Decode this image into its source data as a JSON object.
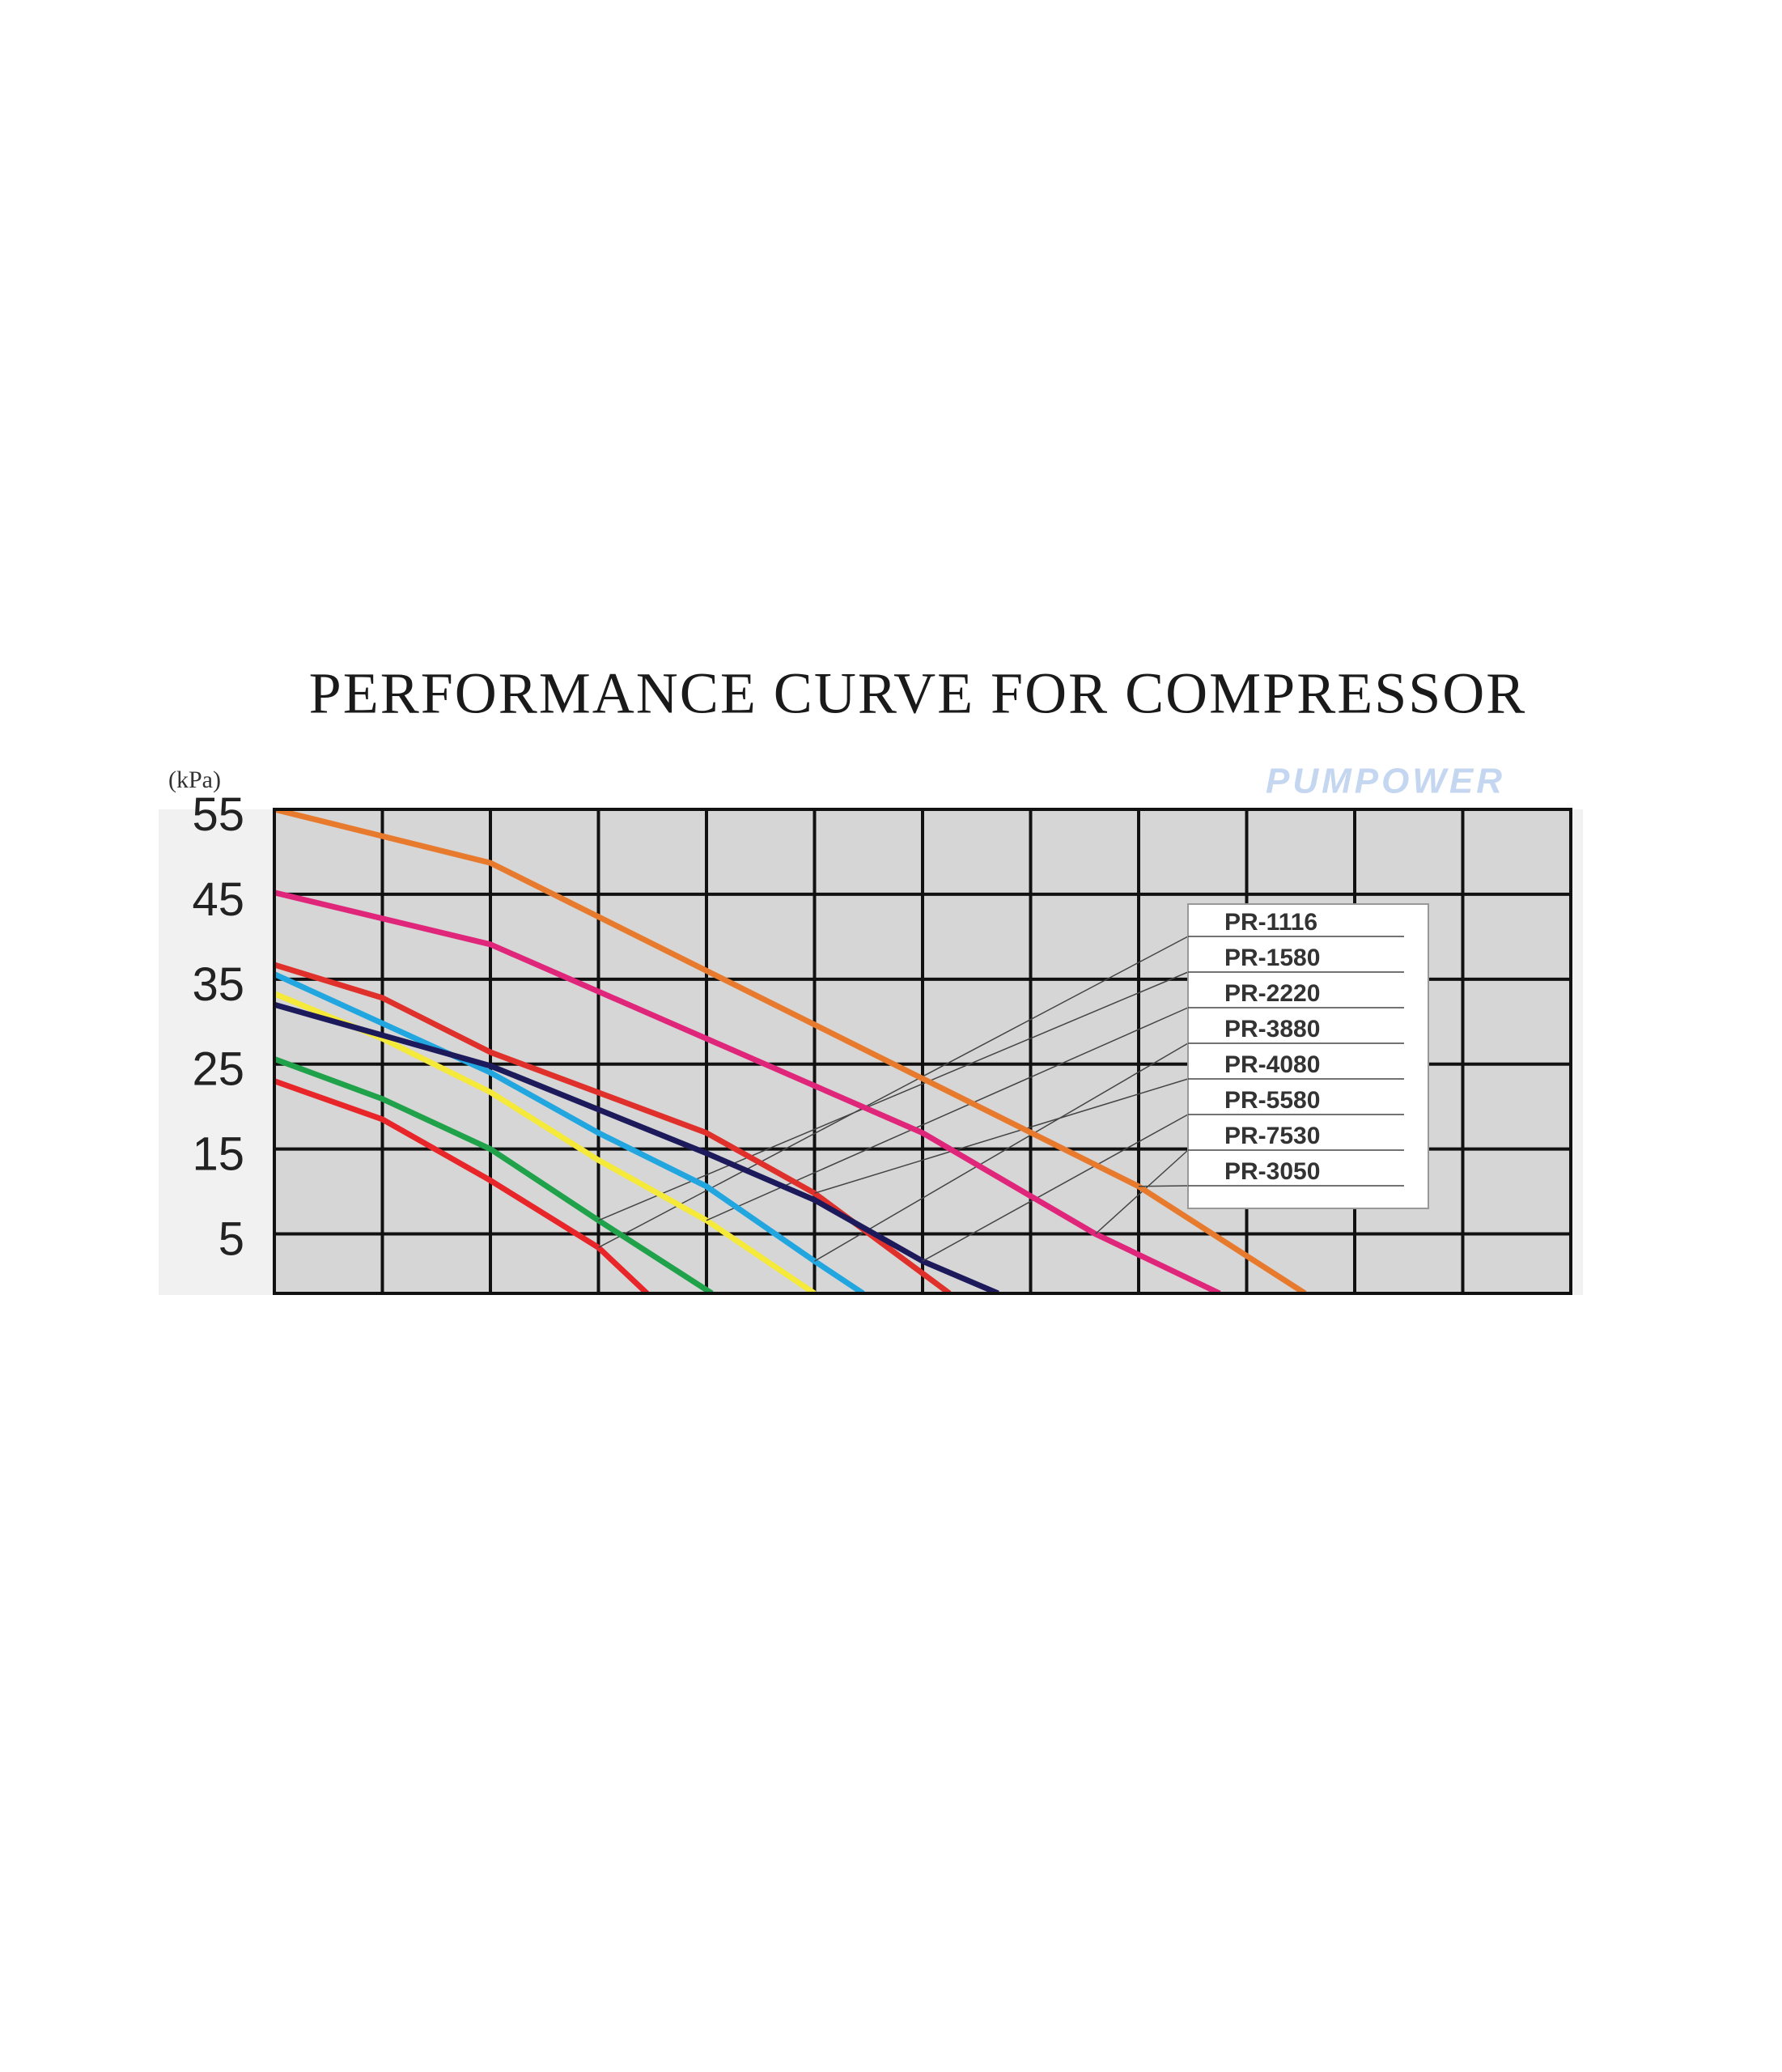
{
  "chart_data": {
    "type": "line",
    "title": "PERFORMANCE CURVE FOR COMPRESSOR",
    "y_label": "(kPa)",
    "watermark": "PUMPOWER",
    "xlim": [
      0,
      12
    ],
    "ylim": [
      -2,
      55
    ],
    "yticks": [
      5,
      15,
      25,
      35,
      45,
      55
    ],
    "grid": true,
    "legend": "upper right",
    "series": [
      {
        "name": "PR-1116",
        "color": "#e8262a",
        "x": [
          0,
          1,
          2,
          3,
          3.45
        ],
        "values": [
          23,
          18.5,
          11.3,
          3.4,
          -2
        ]
      },
      {
        "name": "PR-1580",
        "color": "#1fa24a",
        "x": [
          0,
          1,
          2,
          3,
          4.05
        ],
        "values": [
          25.6,
          20.9,
          15,
          6.6,
          -2
        ]
      },
      {
        "name": "PR-2220",
        "color": "#f5e93a",
        "x": [
          0,
          1,
          2,
          3,
          4,
          5
        ],
        "values": [
          33.3,
          28,
          21.7,
          13.7,
          6.6,
          -2
        ]
      },
      {
        "name": "PR-3880",
        "color": "#22a6e0",
        "x": [
          0,
          2,
          3,
          4,
          5,
          5.45
        ],
        "values": [
          35.6,
          24,
          16.9,
          10.6,
          1.8,
          -2
        ]
      },
      {
        "name": "PR-4080",
        "color": "#e0302c",
        "x": [
          0,
          1,
          2,
          4,
          5,
          6.25
        ],
        "values": [
          36.7,
          32.8,
          26.4,
          16.9,
          9.8,
          -2
        ]
      },
      {
        "name": "PR-5580",
        "color": "#1d1a5c",
        "x": [
          0,
          2,
          4,
          5,
          6,
          6.7
        ],
        "values": [
          32,
          24.8,
          14.5,
          9,
          1.8,
          -2
        ]
      },
      {
        "name": "PR-7530",
        "color": "#e0267a",
        "x": [
          0,
          2,
          4,
          6,
          7.6,
          8.75
        ],
        "values": [
          45.2,
          39.1,
          28,
          16.9,
          5,
          -2
        ]
      },
      {
        "name": "PR-3050",
        "color": "#e87a2e",
        "x": [
          0,
          2,
          4,
          6,
          8,
          9.54
        ],
        "values": [
          55,
          48.7,
          36,
          23.3,
          10.6,
          -2
        ]
      }
    ]
  }
}
